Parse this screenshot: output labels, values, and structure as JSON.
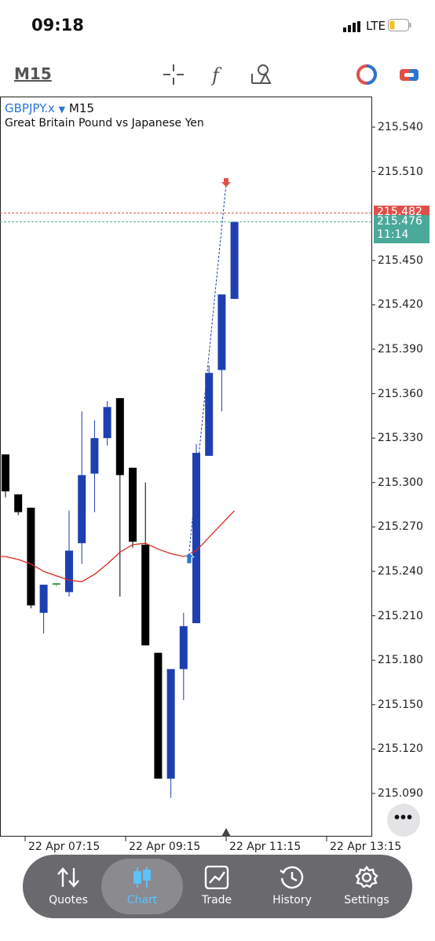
{
  "status_bar": {
    "time": "09:18",
    "network": "LTE",
    "signal_icon": "signal-bars-icon",
    "battery_icon": "battery-low-icon"
  },
  "toolbar": {
    "timeframe": "M15",
    "icons": [
      "crosshair-icon",
      "indicator-f-icon",
      "objects-icon",
      "trade-panel-icon",
      "one-click-trade-icon"
    ]
  },
  "chart": {
    "symbol": "GBPJPY.x",
    "symbol_arrow": "▼",
    "timeframe": "M15",
    "description": "Great Britain Pound vs Japanese Yen",
    "price_labels": [
      "215.540",
      "215.510",
      "215.450",
      "215.420",
      "215.390",
      "215.360",
      "215.330",
      "215.300",
      "215.270",
      "215.240",
      "215.210",
      "215.180",
      "215.150",
      "215.120",
      "215.090"
    ],
    "time_labels": [
      "22 Apr 07:15",
      "22 Apr 09:15",
      "22 Apr 11:15",
      "22 Apr 13:15"
    ],
    "ask_price": "215.482",
    "bid_price": "215.476",
    "countdown": "11:14",
    "colors": {
      "bull": "#1e3fb0",
      "bear": "#000000",
      "ask": "#e0504a",
      "bid": "#4aa99a",
      "ma": "#d9281e",
      "symbol": "#2a76d2"
    }
  },
  "chart_data": {
    "type": "candlestick",
    "symbol": "GBPJPY.x",
    "timeframe": "M15",
    "ylim": [
      215.075,
      215.555
    ],
    "candles": [
      {
        "open": 215.319,
        "high": 215.319,
        "low": 215.29,
        "close": 215.294
      },
      {
        "open": 215.292,
        "high": 215.292,
        "low": 215.278,
        "close": 215.28
      },
      {
        "open": 215.283,
        "high": 215.283,
        "low": 215.215,
        "close": 215.217
      },
      {
        "open": 215.212,
        "high": 215.231,
        "low": 215.198,
        "close": 215.231
      },
      {
        "open": 215.231,
        "high": 215.232,
        "low": 215.23,
        "close": 215.232
      },
      {
        "open": 215.226,
        "high": 215.281,
        "low": 215.223,
        "close": 215.254
      },
      {
        "open": 215.259,
        "high": 215.348,
        "low": 215.245,
        "close": 215.305
      },
      {
        "open": 215.306,
        "high": 215.342,
        "low": 215.28,
        "close": 215.33
      },
      {
        "open": 215.33,
        "high": 215.355,
        "low": 215.325,
        "close": 215.351
      },
      {
        "open": 215.357,
        "high": 215.357,
        "low": 215.223,
        "close": 215.305
      },
      {
        "open": 215.31,
        "high": 215.31,
        "low": 215.256,
        "close": 215.26
      },
      {
        "open": 215.258,
        "high": 215.3,
        "low": 215.19,
        "close": 215.19
      },
      {
        "open": 215.185,
        "high": 215.185,
        "low": 215.1,
        "close": 215.1
      },
      {
        "open": 215.1,
        "high": 215.174,
        "low": 215.087,
        "close": 215.174
      },
      {
        "open": 215.174,
        "high": 215.212,
        "low": 215.153,
        "close": 215.203
      },
      {
        "open": 215.205,
        "high": 215.326,
        "low": 215.205,
        "close": 215.32
      },
      {
        "open": 215.318,
        "high": 215.379,
        "low": 215.318,
        "close": 215.374
      },
      {
        "open": 215.376,
        "high": 215.427,
        "low": 215.348,
        "close": 215.427
      },
      {
        "open": 215.424,
        "high": 215.476,
        "low": 215.424,
        "close": 215.476
      }
    ],
    "moving_average": [
      215.25,
      215.248,
      215.245,
      215.24,
      215.237,
      215.234,
      215.233,
      215.238,
      215.245,
      215.253,
      215.258,
      215.259,
      215.255,
      215.252,
      215.25,
      215.254,
      215.263,
      215.272,
      215.281
    ],
    "ask": 215.482,
    "bid": 215.476
  },
  "tab_bar": {
    "items": [
      {
        "label": "Quotes",
        "icon": "quotes-arrows-icon"
      },
      {
        "label": "Chart",
        "icon": "candles-icon"
      },
      {
        "label": "Trade",
        "icon": "trade-chart-icon"
      },
      {
        "label": "History",
        "icon": "history-clock-icon"
      },
      {
        "label": "Settings",
        "icon": "gear-icon"
      }
    ],
    "active": "Chart"
  }
}
